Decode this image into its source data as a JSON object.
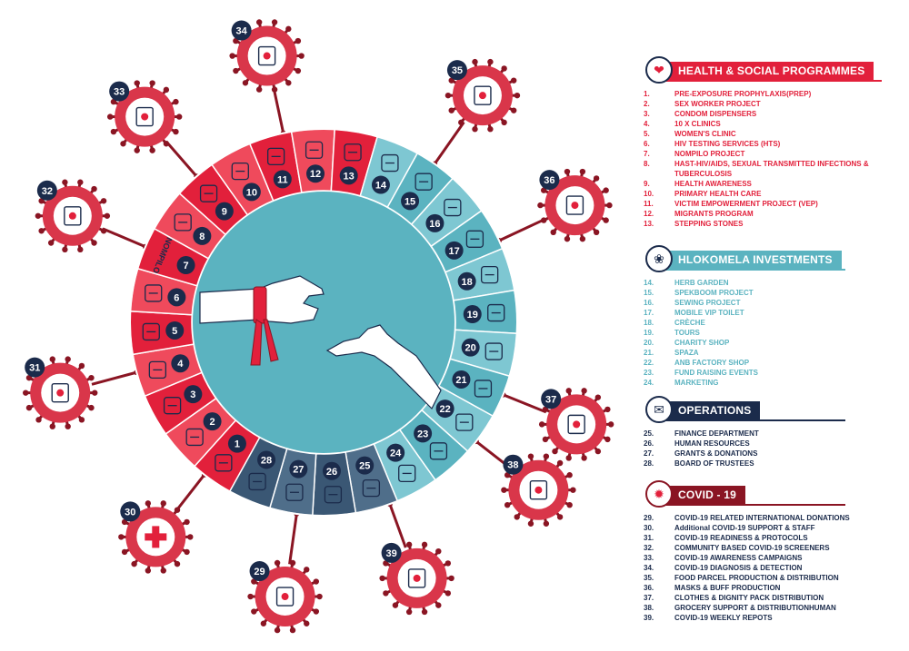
{
  "colors": {
    "red": "#e2203b",
    "dark_red": "#8a1523",
    "teal": "#5bb3c0",
    "navy": "#1b2b4b",
    "slate": "#4f6e8a"
  },
  "center_label": "NOMPILO",
  "wheel_segments": [
    {
      "n": "1",
      "icon": "pills-icon",
      "group": "health"
    },
    {
      "n": "2",
      "icon": "clinic-icon",
      "group": "health"
    },
    {
      "n": "3",
      "icon": "condom-icon",
      "group": "health"
    },
    {
      "n": "4",
      "icon": "clinic-icon",
      "group": "health"
    },
    {
      "n": "5",
      "icon": "womens-clinic-icon",
      "group": "health"
    },
    {
      "n": "6",
      "icon": "aids-ribbon-icon",
      "group": "health"
    },
    {
      "n": "7",
      "icon": "nompilo-text-icon",
      "group": "health"
    },
    {
      "n": "8",
      "icon": "lungs-icon",
      "group": "health"
    },
    {
      "n": "9",
      "icon": "hand-icon",
      "group": "health"
    },
    {
      "n": "10",
      "icon": "heart-monitor-icon",
      "group": "health"
    },
    {
      "n": "11",
      "icon": "brain-icon",
      "group": "health"
    },
    {
      "n": "12",
      "icon": "person-icon",
      "group": "health"
    },
    {
      "n": "13",
      "icon": "hands-icon",
      "group": "health"
    },
    {
      "n": "14",
      "icon": "seed-packet-icon",
      "group": "invest"
    },
    {
      "n": "15",
      "icon": "herb-icon",
      "group": "invest"
    },
    {
      "n": "16",
      "icon": "sewing-machine-icon",
      "group": "invest"
    },
    {
      "n": "17",
      "icon": "toilet-icon",
      "group": "invest"
    },
    {
      "n": "18",
      "icon": "pacifier-icon",
      "group": "invest"
    },
    {
      "n": "19",
      "icon": "bus-icon",
      "group": "invest"
    },
    {
      "n": "20",
      "icon": "tshirt-icon",
      "group": "invest"
    },
    {
      "n": "21",
      "icon": "basket-icon",
      "group": "invest"
    },
    {
      "n": "22",
      "icon": "mango-icon",
      "group": "invest"
    },
    {
      "n": "23",
      "icon": "fireworks-icon",
      "group": "invest"
    },
    {
      "n": "24",
      "icon": "megaphone-icon",
      "group": "invest"
    },
    {
      "n": "25",
      "icon": "building-icon",
      "group": "ops"
    },
    {
      "n": "26",
      "icon": "people-network-icon",
      "group": "ops"
    },
    {
      "n": "27",
      "icon": "handshake-icon",
      "group": "ops"
    },
    {
      "n": "28",
      "icon": "board-meeting-icon",
      "group": "ops"
    }
  ],
  "covid_bubbles": [
    {
      "n": "29",
      "icon": "globe-heart-icon"
    },
    {
      "n": "30",
      "icon": "red-cross-icon"
    },
    {
      "n": "31",
      "icon": "sanitizer-icon"
    },
    {
      "n": "32",
      "icon": "checklist-icon"
    },
    {
      "n": "33",
      "icon": "handwash-icon"
    },
    {
      "n": "34",
      "icon": "test-kit-icon"
    },
    {
      "n": "35",
      "icon": "food-parcel-icon"
    },
    {
      "n": "36",
      "icon": "mask-icon"
    },
    {
      "n": "37",
      "icon": "clothes-icon"
    },
    {
      "n": "38",
      "icon": "grocery-bag-icon"
    },
    {
      "n": "39",
      "icon": "report-icon"
    }
  ],
  "legend": {
    "health": {
      "title": "HEALTH & SOCIAL PROGRAMMES",
      "icon": "heart-hand-icon",
      "items": [
        {
          "num": "1.",
          "text": "PRE-EXPOSURE PROPHYLAXIS(PREP)"
        },
        {
          "num": "2.",
          "text": "SEX WORKER PROJECT"
        },
        {
          "num": "3.",
          "text": "CONDOM DISPENSERS"
        },
        {
          "num": "4.",
          "text": "10 X CLINICS"
        },
        {
          "num": "5.",
          "text": "WOMEN'S CLINIC"
        },
        {
          "num": "6.",
          "text": "HIV TESTING SERVICES (HTS)"
        },
        {
          "num": "7.",
          "text": "NOMPILO PROJECT"
        },
        {
          "num": "8.",
          "text": "HAST-HIV/AIDS, SEXUAL TRANSMITTED INFECTIONS & TUBERCULOSIS"
        },
        {
          "num": "9.",
          "text": "HEALTH AWARENESS"
        },
        {
          "num": "10.",
          "text": "PRIMARY HEALTH CARE"
        },
        {
          "num": "11.",
          "text": "VICTIM EMPOWERMENT PROJECT (VEP)"
        },
        {
          "num": "12.",
          "text": "MIGRANTS PROGRAM"
        },
        {
          "num": "13.",
          "text": "STEPPING STONES"
        }
      ]
    },
    "investments": {
      "title": "HLOKOMELA INVESTMENTS",
      "icon": "hand-plant-icon",
      "items": [
        {
          "num": "14.",
          "text": "HERB GARDEN"
        },
        {
          "num": "15.",
          "text": "SPEKBOOM PROJECT"
        },
        {
          "num": "16.",
          "text": "SEWING PROJECT"
        },
        {
          "num": "17.",
          "text": "MOBILE VIP TOILET"
        },
        {
          "num": "18.",
          "text": "CRÈCHE"
        },
        {
          "num": "19.",
          "text": "TOURS"
        },
        {
          "num": "20.",
          "text": "CHARITY SHOP"
        },
        {
          "num": "21.",
          "text": "SPAZA"
        },
        {
          "num": "22.",
          "text": "ANB FACTORY SHOP"
        },
        {
          "num": "23.",
          "text": "FUND RAISING EVENTS"
        },
        {
          "num": "24.",
          "text": "MARKETING"
        }
      ]
    },
    "operations": {
      "title": "OPERATIONS",
      "icon": "ballot-hand-icon",
      "items": [
        {
          "num": "25.",
          "text": "FINANCE DEPARTMENT"
        },
        {
          "num": "26.",
          "text": "HUMAN RESOURCES"
        },
        {
          "num": "27.",
          "text": "GRANTS & DONATIONS"
        },
        {
          "num": "28.",
          "text": "BOARD OF TRUSTEES"
        }
      ]
    },
    "covid": {
      "title": "COVID - 19",
      "icon": "virus-icon",
      "items": [
        {
          "num": "29.",
          "text": "COVID-19 RELATED INTERNATIONAL DONATIONS"
        },
        {
          "num": "30.",
          "text": "Additional COVID-19 SUPPORT & STAFF"
        },
        {
          "num": "31.",
          "text": "COVID-19 READINESS & PROTOCOLS"
        },
        {
          "num": "32.",
          "text": "COMMUNITY BASED COVID-19 SCREENERS"
        },
        {
          "num": "33.",
          "text": "COVID-19 AWARENESS CAMPAIGNS"
        },
        {
          "num": "34.",
          "text": "COVID-19 DIAGNOSIS & DETECTION"
        },
        {
          "num": "35.",
          "text": "FOOD PARCEL PRODUCTION & DISTRIBUTION"
        },
        {
          "num": "36.",
          "text": "MASKS & BUFF PRODUCTION"
        },
        {
          "num": "37.",
          "text": "CLOTHES & DIGNITY PACK DISTRIBUTION"
        },
        {
          "num": "38.",
          "text": "GROCERY SUPPORT & DISTRIBUTIONHUMAN"
        },
        {
          "num": "39.",
          "text": "COVID-19 WEEKLY REPOTS"
        }
      ]
    }
  }
}
